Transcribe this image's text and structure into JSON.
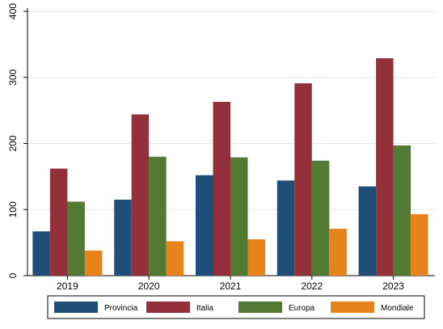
{
  "chart_data": {
    "type": "bar",
    "title": "",
    "xlabel": "",
    "ylabel": "",
    "categories": [
      "2019",
      "2020",
      "2021",
      "2022",
      "2023"
    ],
    "series": [
      {
        "name": "Provincia",
        "color": "#1f4e79",
        "values": [
          67,
          115,
          152,
          144,
          135
        ]
      },
      {
        "name": "Italia",
        "color": "#93303a",
        "values": [
          162,
          244,
          263,
          291,
          329
        ]
      },
      {
        "name": "Europa",
        "color": "#537a33",
        "values": [
          112,
          180,
          179,
          174,
          197
        ]
      },
      {
        "name": "Mondiale",
        "color": "#e8821a",
        "values": [
          38,
          52,
          55,
          71,
          93
        ]
      }
    ],
    "ylim": [
      0,
      400
    ],
    "yticks": [
      "0",
      "100",
      "200",
      "300",
      "400"
    ],
    "grid": true,
    "legend_position": "bottom"
  }
}
